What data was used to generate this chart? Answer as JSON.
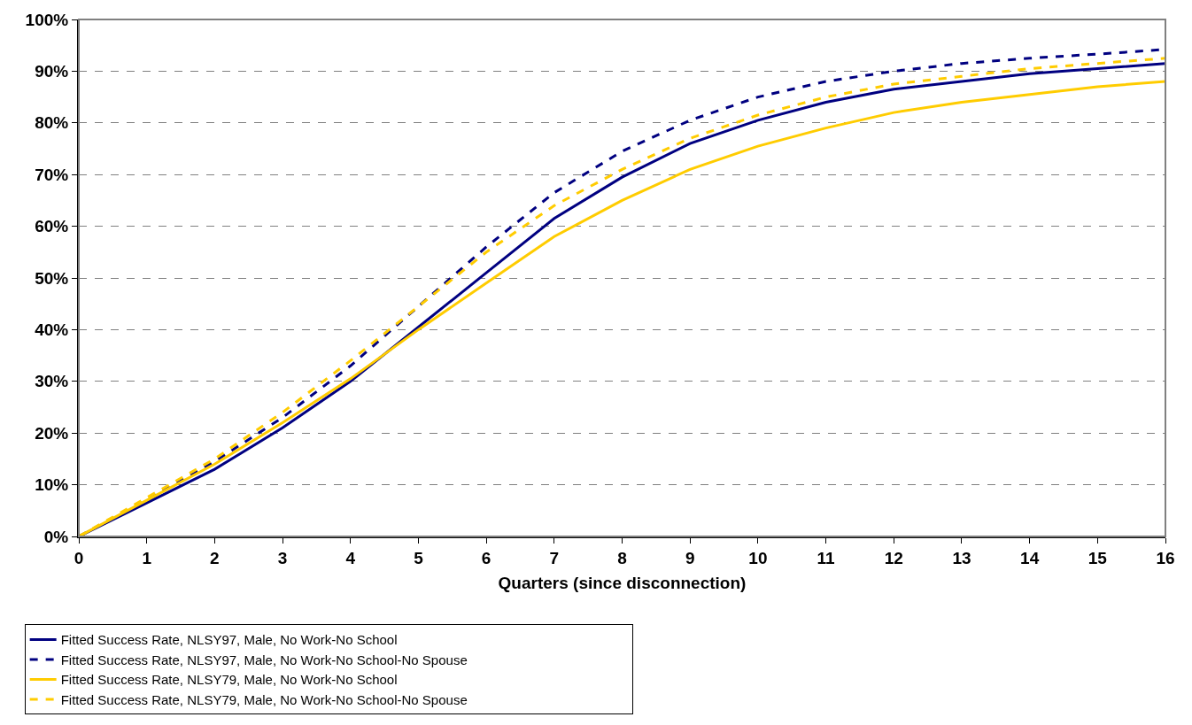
{
  "chart_data": {
    "type": "line",
    "xlabel": "Quarters (since disconnection)",
    "x": [
      0,
      1,
      2,
      3,
      4,
      5,
      6,
      7,
      8,
      9,
      10,
      11,
      12,
      13,
      14,
      15,
      16
    ],
    "xlim": [
      0,
      16
    ],
    "xticks": [
      0,
      1,
      2,
      3,
      4,
      5,
      6,
      7,
      8,
      9,
      10,
      11,
      12,
      13,
      14,
      15,
      16
    ],
    "ylim": [
      0,
      100
    ],
    "yticks": [
      {
        "value": 0,
        "label": "0%"
      },
      {
        "value": 10,
        "label": "10%"
      },
      {
        "value": 20,
        "label": "20%"
      },
      {
        "value": 30,
        "label": "30%"
      },
      {
        "value": 40,
        "label": "40%"
      },
      {
        "value": 50,
        "label": "50%"
      },
      {
        "value": 60,
        "label": "60%"
      },
      {
        "value": 70,
        "label": "70%"
      },
      {
        "value": 80,
        "label": "80%"
      },
      {
        "value": 90,
        "label": "90%"
      },
      {
        "value": 100,
        "label": "100%"
      }
    ],
    "grid": "y",
    "legend": "bottom",
    "marker": "none",
    "series": [
      {
        "name": "Fitted Success Rate, NLSY97, Male, No Work-No School",
        "color": "#000080",
        "line_style": "solid",
        "values": [
          0,
          6.5,
          13,
          21,
          30,
          40.5,
          51,
          61.5,
          69.5,
          76,
          80.5,
          84,
          86.5,
          88,
          89.5,
          90.5,
          91.5
        ]
      },
      {
        "name": "Fitted Success Rate, NLSY97, Male, No Work-No School-No Spouse",
        "color": "#000080",
        "line_style": "dashed",
        "values": [
          0,
          7,
          14.5,
          23,
          33,
          44.5,
          56,
          66.5,
          74.5,
          80.5,
          85,
          88,
          90,
          91.5,
          92.5,
          93.3,
          94.2
        ]
      },
      {
        "name": "Fitted Success Rate, NLSY79, Male, No Work-No School",
        "color": "#ffcc00",
        "line_style": "solid",
        "values": [
          0,
          7,
          14,
          22,
          30.5,
          40,
          49,
          58,
          65,
          71,
          75.5,
          79,
          82,
          84,
          85.5,
          87,
          88
        ]
      },
      {
        "name": "Fitted Success Rate, NLSY79, Male, No Work-No School-No Spouse",
        "color": "#ffcc00",
        "line_style": "dashed",
        "values": [
          0,
          7.5,
          15,
          24,
          34,
          44.5,
          55,
          64,
          71,
          77,
          81.5,
          85,
          87.5,
          89,
          90.5,
          91.5,
          92.5
        ]
      }
    ]
  }
}
